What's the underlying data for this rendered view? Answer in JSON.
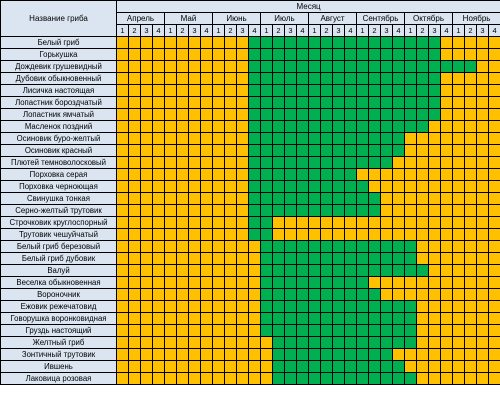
{
  "table": {
    "name_header": "Название гриба",
    "group_header": "Месяц",
    "months": [
      "Апрель",
      "Май",
      "Июнь",
      "Июль",
      "Август",
      "Сентябрь",
      "Октябрь",
      "Ноябрь"
    ],
    "weeks": [
      "1",
      "2",
      "3",
      "4"
    ],
    "colors": {
      "in_season": "#00b050",
      "off_season": "#ffc000",
      "header": "#dbe5f1"
    },
    "rows": [
      {
        "name": "Белый гриб",
        "season": [
          11,
          26
        ]
      },
      {
        "name": "Горькушка",
        "season": [
          11,
          26
        ]
      },
      {
        "name": "Дождевик грушевидный",
        "season": [
          11,
          29
        ]
      },
      {
        "name": "Дубовик обыкновенный",
        "season": [
          11,
          26
        ]
      },
      {
        "name": "Лисичка настоящая",
        "season": [
          11,
          26
        ]
      },
      {
        "name": "Лопастник бороздчатый",
        "season": [
          11,
          26
        ]
      },
      {
        "name": "Лопастник ямчатый",
        "season": [
          11,
          26
        ]
      },
      {
        "name": "Масленок поздний",
        "season": [
          11,
          25
        ]
      },
      {
        "name": "Осиновик буро-желтый",
        "season": [
          11,
          23
        ]
      },
      {
        "name": "Осиновик красный",
        "season": [
          11,
          23
        ]
      },
      {
        "name": "Плютей темноволосковый",
        "season": [
          11,
          22
        ]
      },
      {
        "name": "Порховка серая",
        "season": [
          11,
          19
        ]
      },
      {
        "name": "Порховка черноющая",
        "season": [
          11,
          20
        ]
      },
      {
        "name": "Свинушка тонкая",
        "season": [
          11,
          21
        ]
      },
      {
        "name": "Серно-желтый трутовик",
        "season": [
          11,
          21
        ]
      },
      {
        "name": "Строчковик круглоспорный",
        "season": [
          11,
          12
        ]
      },
      {
        "name": "Трутовик чешуйчатый",
        "season": [
          11,
          12
        ]
      },
      {
        "name": "Белый гриб березовый",
        "season": [
          12,
          24
        ]
      },
      {
        "name": "Белый гриб дубовик",
        "season": [
          12,
          24
        ]
      },
      {
        "name": "Валуй",
        "season": [
          12,
          25
        ]
      },
      {
        "name": "Веселка обыкновенная",
        "season": [
          12,
          20
        ]
      },
      {
        "name": "Вороночник",
        "season": [
          12,
          21
        ]
      },
      {
        "name": "Ежовик режечатовид",
        "season": [
          12,
          24
        ]
      },
      {
        "name": "Говорушка воронковидная",
        "season": [
          12,
          24
        ]
      },
      {
        "name": "Груздь настоящий",
        "season": [
          12,
          24
        ]
      },
      {
        "name": "Желтный гриб",
        "season": [
          13,
          24
        ]
      },
      {
        "name": "Зонтичный трутовик",
        "season": [
          13,
          22
        ]
      },
      {
        "name": "Ившень",
        "season": [
          13,
          23
        ]
      },
      {
        "name": "Лаковица розовая",
        "season": [
          13,
          24
        ]
      }
    ]
  }
}
